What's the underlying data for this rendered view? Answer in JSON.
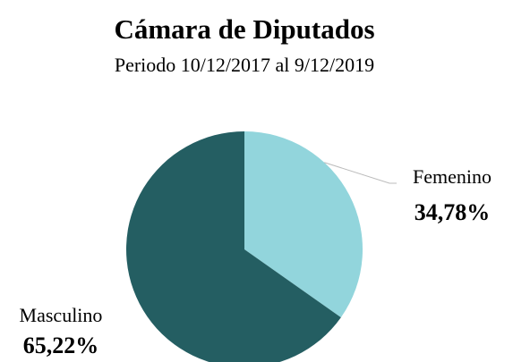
{
  "chart_data": {
    "type": "pie",
    "title": "Cámara de Diputados",
    "subtitle": "Periodo 10/12/2017 al 9/12/2019",
    "categories": [
      "Femenino",
      "Masculino"
    ],
    "values": [
      34.78,
      65.22
    ],
    "value_labels": [
      "34,78%",
      "65,22%"
    ],
    "colors": [
      "#92d5dc",
      "#245e62"
    ]
  }
}
